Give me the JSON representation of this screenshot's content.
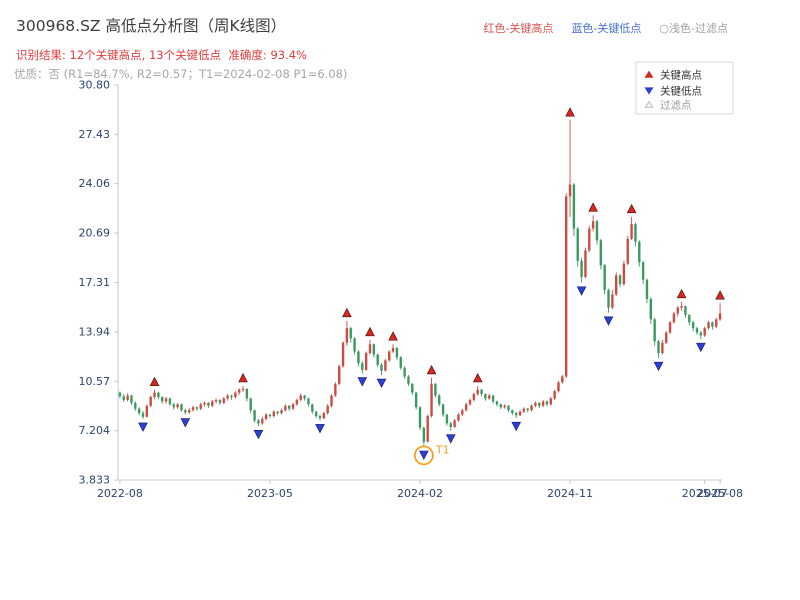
{
  "header": {
    "title": "300968.SZ 高低点分析图（周K线图）",
    "result_line": "识别结果: 12个关键高点, 13个关键低点  准确度: 93.4%",
    "result_line_color": "#e03c3c",
    "quality_line": "优质：否 (R1=84.7%, R2=0.57；T1=2024-02-08 P1=6.08)",
    "quality_line_color": "#a6a6a6",
    "page_legend": [
      {
        "label": "红色-关键高点",
        "color": "#d9534f"
      },
      {
        "label": "蓝色-关键低点",
        "color": "#4a6fd4"
      },
      {
        "label": "○浅色-过滤点",
        "color": "#9e9e9e"
      }
    ]
  },
  "chart_data": {
    "type": "candlestick",
    "symbol_title": "300968.SZ 高低点分析图（周K线图）",
    "ylim": [
      3.833,
      30.8
    ],
    "grid": false,
    "y_ticks": [
      {
        "v": 30.8,
        "label": "30.80"
      },
      {
        "v": 27.43,
        "label": "27.43"
      },
      {
        "v": 24.06,
        "label": "24.06"
      },
      {
        "v": 20.69,
        "label": "20.69"
      },
      {
        "v": 17.31,
        "label": "17.31"
      },
      {
        "v": 13.94,
        "label": "13.94"
      },
      {
        "v": 10.57,
        "label": "10.57"
      },
      {
        "v": 7.204,
        "label": "7.204"
      },
      {
        "v": 3.833,
        "label": "3.833"
      }
    ],
    "x_ticks": [
      {
        "week": 0,
        "label": "2022-08"
      },
      {
        "week": 39,
        "label": "2023-05"
      },
      {
        "week": 78,
        "label": "2024-02"
      },
      {
        "week": 117,
        "label": "2024-11"
      },
      {
        "week": 152,
        "label": "2025-07"
      },
      {
        "week": 156,
        "label": "2025-08"
      }
    ],
    "colors": {
      "up": "#cd4a42",
      "down": "#3a9960",
      "key_high": "#d7261d",
      "key_high_edge": "#3a0a0a",
      "key_low": "#2d3fd4",
      "key_low_edge": "#0c1560",
      "filter": "#f5a01e",
      "axis": "#c4c9d2",
      "tick_label": "#2d4373"
    },
    "legend_box": [
      {
        "marker": "up-triangle",
        "label": "关键高点",
        "text_color": "#333333"
      },
      {
        "marker": "down-triangle",
        "label": "关键低点",
        "text_color": "#333333"
      },
      {
        "marker": "open-triangle",
        "label": "过滤点",
        "text_color": "#9b9b9b"
      }
    ],
    "key_highs": [
      {
        "date": "2022-10-07",
        "price": 10.0
      },
      {
        "date": "2023-03-17",
        "price": 10.25
      },
      {
        "date": "2023-09-22",
        "price": 14.7
      },
      {
        "date": "2023-11-03",
        "price": 13.4
      },
      {
        "date": "2023-12-15",
        "price": 13.1
      },
      {
        "date": "2024-02-23",
        "price": 10.8
      },
      {
        "date": "2024-05-17",
        "price": 10.25
      },
      {
        "date": "2024-11-01",
        "price": 28.4
      },
      {
        "date": "2024-12-13",
        "price": 21.9
      },
      {
        "date": "2025-02-21",
        "price": 21.8
      },
      {
        "date": "2025-05-23",
        "price": 16.0
      },
      {
        "date": "2025-08-01",
        "price": 15.9
      }
    ],
    "key_lows": [
      {
        "date": "2022-09-16",
        "price": 8.0
      },
      {
        "date": "2022-12-02",
        "price": 8.3
      },
      {
        "date": "2023-04-14",
        "price": 7.5
      },
      {
        "date": "2023-08-04",
        "price": 7.9
      },
      {
        "date": "2023-10-20",
        "price": 11.1
      },
      {
        "date": "2023-11-24",
        "price": 11.0
      },
      {
        "date": "2024-02-09",
        "price": 6.08
      },
      {
        "date": "2024-03-29",
        "price": 7.2
      },
      {
        "date": "2024-07-26",
        "price": 8.05
      },
      {
        "date": "2024-11-22",
        "price": 17.3
      },
      {
        "date": "2025-01-10",
        "price": 15.25
      },
      {
        "date": "2025-04-11",
        "price": 12.15
      },
      {
        "date": "2025-06-27",
        "price": 13.45
      }
    ],
    "t1_annotation": {
      "date": "2024-02-09",
      "label": "T1",
      "price": 6.08
    },
    "candles": [
      [
        "2022-08-05",
        9.8,
        9.88,
        9.4,
        9.55
      ],
      [
        "2022-08-12",
        9.55,
        9.7,
        9.15,
        9.3
      ],
      [
        "2022-08-19",
        9.3,
        9.75,
        9.2,
        9.6
      ],
      [
        "2022-08-26",
        9.6,
        9.65,
        8.95,
        9.1
      ],
      [
        "2022-09-02",
        9.1,
        9.2,
        8.55,
        8.7
      ],
      [
        "2022-09-09",
        8.7,
        8.8,
        8.25,
        8.4
      ],
      [
        "2022-09-16",
        8.4,
        8.55,
        8.0,
        8.15
      ],
      [
        "2022-09-23",
        8.15,
        9.0,
        8.1,
        8.9
      ],
      [
        "2022-09-30",
        8.9,
        9.6,
        8.8,
        9.5
      ],
      [
        "2022-10-07",
        9.5,
        10.0,
        9.35,
        9.8
      ],
      [
        "2022-10-14",
        9.8,
        9.85,
        9.35,
        9.5
      ],
      [
        "2022-10-21",
        9.5,
        9.55,
        9.05,
        9.2
      ],
      [
        "2022-10-28",
        9.2,
        9.5,
        9.05,
        9.4
      ],
      [
        "2022-11-04",
        9.4,
        9.45,
        8.9,
        9.0
      ],
      [
        "2022-11-11",
        9.0,
        9.1,
        8.65,
        8.8
      ],
      [
        "2022-11-18",
        8.8,
        9.1,
        8.7,
        9.0
      ],
      [
        "2022-11-25",
        9.0,
        9.05,
        8.5,
        8.6
      ],
      [
        "2022-12-02",
        8.6,
        8.7,
        8.3,
        8.45
      ],
      [
        "2022-12-09",
        8.45,
        8.75,
        8.35,
        8.6
      ],
      [
        "2022-12-16",
        8.6,
        8.9,
        8.5,
        8.8
      ],
      [
        "2022-12-23",
        8.8,
        8.85,
        8.55,
        8.7
      ],
      [
        "2022-12-30",
        8.7,
        9.1,
        8.6,
        9.0
      ],
      [
        "2023-01-06",
        9.0,
        9.2,
        8.85,
        9.1
      ],
      [
        "2023-01-13",
        9.1,
        9.15,
        8.75,
        8.9
      ],
      [
        "2023-01-20",
        8.9,
        9.3,
        8.8,
        9.2
      ],
      [
        "2023-01-27",
        9.2,
        9.4,
        9.05,
        9.3
      ],
      [
        "2023-02-03",
        9.3,
        9.35,
        8.95,
        9.1
      ],
      [
        "2023-02-10",
        9.1,
        9.5,
        9.0,
        9.4
      ],
      [
        "2023-02-17",
        9.4,
        9.7,
        9.25,
        9.6
      ],
      [
        "2023-02-24",
        9.6,
        9.65,
        9.3,
        9.5
      ],
      [
        "2023-03-03",
        9.5,
        9.9,
        9.4,
        9.8
      ],
      [
        "2023-03-10",
        9.8,
        10.1,
        9.65,
        10.0
      ],
      [
        "2023-03-17",
        10.0,
        10.25,
        9.85,
        10.05
      ],
      [
        "2023-03-24",
        10.05,
        10.1,
        9.2,
        9.4
      ],
      [
        "2023-03-31",
        9.4,
        9.45,
        8.4,
        8.6
      ],
      [
        "2023-04-07",
        8.6,
        8.65,
        7.75,
        7.9
      ],
      [
        "2023-04-14",
        7.9,
        8.0,
        7.5,
        7.7
      ],
      [
        "2023-04-21",
        7.7,
        8.15,
        7.6,
        8.0
      ],
      [
        "2023-04-28",
        8.0,
        8.4,
        7.9,
        8.3
      ],
      [
        "2023-05-05",
        8.3,
        8.35,
        8.05,
        8.2
      ],
      [
        "2023-05-12",
        8.2,
        8.6,
        8.1,
        8.5
      ],
      [
        "2023-05-19",
        8.5,
        8.55,
        8.25,
        8.4
      ],
      [
        "2023-05-26",
        8.4,
        8.7,
        8.3,
        8.6
      ],
      [
        "2023-06-02",
        8.6,
        9.0,
        8.5,
        8.9
      ],
      [
        "2023-06-09",
        8.9,
        8.95,
        8.55,
        8.7
      ],
      [
        "2023-06-16",
        8.7,
        9.1,
        8.6,
        9.0
      ],
      [
        "2023-06-23",
        9.0,
        9.4,
        8.9,
        9.3
      ],
      [
        "2023-06-30",
        9.3,
        9.75,
        9.2,
        9.6
      ],
      [
        "2023-07-07",
        9.6,
        9.65,
        9.25,
        9.4
      ],
      [
        "2023-07-14",
        9.4,
        9.45,
        8.85,
        9.0
      ],
      [
        "2023-07-21",
        9.0,
        9.05,
        8.35,
        8.5
      ],
      [
        "2023-07-28",
        8.5,
        8.55,
        8.05,
        8.2
      ],
      [
        "2023-08-04",
        8.2,
        8.3,
        7.9,
        8.05
      ],
      [
        "2023-08-11",
        8.05,
        8.5,
        8.0,
        8.4
      ],
      [
        "2023-08-18",
        8.4,
        9.0,
        8.3,
        8.9
      ],
      [
        "2023-08-25",
        8.9,
        9.7,
        8.8,
        9.6
      ],
      [
        "2023-09-01",
        9.6,
        10.5,
        9.5,
        10.4
      ],
      [
        "2023-09-08",
        10.4,
        11.7,
        10.3,
        11.6
      ],
      [
        "2023-09-15",
        11.6,
        13.3,
        11.5,
        13.2
      ],
      [
        "2023-09-22",
        13.2,
        14.7,
        13.0,
        14.2
      ],
      [
        "2023-09-29",
        14.2,
        14.3,
        13.2,
        13.5
      ],
      [
        "2023-10-06",
        13.5,
        13.6,
        12.4,
        12.6
      ],
      [
        "2023-10-13",
        12.6,
        12.7,
        11.6,
        11.8
      ],
      [
        "2023-10-20",
        11.8,
        11.95,
        11.1,
        11.35
      ],
      [
        "2023-10-27",
        11.35,
        12.6,
        11.3,
        12.5
      ],
      [
        "2023-11-03",
        12.5,
        13.4,
        12.4,
        13.1
      ],
      [
        "2023-11-10",
        13.1,
        13.15,
        12.2,
        12.4
      ],
      [
        "2023-11-17",
        12.4,
        12.45,
        11.55,
        11.7
      ],
      [
        "2023-11-24",
        11.7,
        11.8,
        11.0,
        11.3
      ],
      [
        "2023-12-01",
        11.3,
        12.1,
        11.25,
        12.0
      ],
      [
        "2023-12-08",
        12.0,
        12.7,
        11.9,
        12.6
      ],
      [
        "2023-12-15",
        12.6,
        13.1,
        12.5,
        12.85
      ],
      [
        "2023-12-22",
        12.85,
        12.9,
        12.0,
        12.2
      ],
      [
        "2023-12-29",
        12.2,
        12.3,
        11.35,
        11.5
      ],
      [
        "2024-01-05",
        11.5,
        11.6,
        10.75,
        10.9
      ],
      [
        "2024-01-12",
        10.9,
        11.0,
        10.25,
        10.4
      ],
      [
        "2024-01-19",
        10.4,
        10.45,
        9.65,
        9.8
      ],
      [
        "2024-01-26",
        9.8,
        9.85,
        8.65,
        8.8
      ],
      [
        "2024-02-02",
        8.8,
        8.85,
        7.25,
        7.4
      ],
      [
        "2024-02-09",
        7.4,
        7.45,
        6.08,
        6.45
      ],
      [
        "2024-02-16",
        6.45,
        8.3,
        6.4,
        8.2
      ],
      [
        "2024-02-23",
        8.2,
        10.8,
        8.1,
        10.4
      ],
      [
        "2024-03-01",
        10.4,
        10.45,
        9.45,
        9.6
      ],
      [
        "2024-03-08",
        9.6,
        9.7,
        8.85,
        9.0
      ],
      [
        "2024-03-15",
        9.0,
        9.05,
        8.15,
        8.3
      ],
      [
        "2024-03-22",
        8.3,
        8.35,
        7.55,
        7.7
      ],
      [
        "2024-03-29",
        7.7,
        7.8,
        7.2,
        7.45
      ],
      [
        "2024-04-05",
        7.45,
        8.0,
        7.4,
        7.9
      ],
      [
        "2024-04-12",
        7.9,
        8.4,
        7.8,
        8.3
      ],
      [
        "2024-04-19",
        8.3,
        8.7,
        8.2,
        8.6
      ],
      [
        "2024-04-26",
        8.6,
        9.1,
        8.5,
        9.0
      ],
      [
        "2024-05-03",
        9.0,
        9.4,
        8.9,
        9.3
      ],
      [
        "2024-05-10",
        9.3,
        9.8,
        9.2,
        9.7
      ],
      [
        "2024-05-17",
        9.7,
        10.25,
        9.6,
        10.0
      ],
      [
        "2024-05-24",
        10.0,
        10.05,
        9.55,
        9.7
      ],
      [
        "2024-05-31",
        9.7,
        9.75,
        9.25,
        9.4
      ],
      [
        "2024-06-07",
        9.4,
        9.7,
        9.3,
        9.6
      ],
      [
        "2024-06-14",
        9.6,
        9.65,
        9.05,
        9.2
      ],
      [
        "2024-06-21",
        9.2,
        9.25,
        8.85,
        9.0
      ],
      [
        "2024-06-28",
        9.0,
        9.05,
        8.65,
        8.8
      ],
      [
        "2024-07-05",
        8.8,
        9.0,
        8.7,
        8.9
      ],
      [
        "2024-07-12",
        8.9,
        8.95,
        8.45,
        8.6
      ],
      [
        "2024-07-19",
        8.6,
        8.65,
        8.25,
        8.4
      ],
      [
        "2024-07-26",
        8.4,
        8.5,
        8.05,
        8.25
      ],
      [
        "2024-08-02",
        8.25,
        8.6,
        8.2,
        8.5
      ],
      [
        "2024-08-09",
        8.5,
        8.8,
        8.4,
        8.7
      ],
      [
        "2024-08-16",
        8.7,
        8.75,
        8.45,
        8.6
      ],
      [
        "2024-08-23",
        8.6,
        9.0,
        8.5,
        8.9
      ],
      [
        "2024-08-30",
        8.9,
        9.2,
        8.8,
        9.1
      ],
      [
        "2024-09-06",
        9.1,
        9.15,
        8.75,
        8.9
      ],
      [
        "2024-09-13",
        8.9,
        9.3,
        8.8,
        9.2
      ],
      [
        "2024-09-20",
        9.2,
        9.25,
        8.85,
        9.0
      ],
      [
        "2024-09-27",
        9.0,
        9.5,
        8.9,
        9.4
      ],
      [
        "2024-10-04",
        9.4,
        10.0,
        9.3,
        9.9
      ],
      [
        "2024-10-11",
        9.9,
        10.6,
        9.8,
        10.5
      ],
      [
        "2024-10-18",
        10.5,
        11.0,
        10.4,
        10.9
      ],
      [
        "2024-10-25",
        10.9,
        23.4,
        10.8,
        23.2
      ],
      [
        "2024-11-01",
        23.2,
        28.4,
        21.8,
        24.0
      ],
      [
        "2024-11-08",
        24.0,
        24.1,
        20.5,
        21.0
      ],
      [
        "2024-11-15",
        21.0,
        21.1,
        18.4,
        18.8
      ],
      [
        "2024-11-22",
        18.8,
        19.0,
        17.3,
        17.7
      ],
      [
        "2024-11-29",
        17.7,
        19.7,
        17.6,
        19.5
      ],
      [
        "2024-12-06",
        19.5,
        21.2,
        19.4,
        21.0
      ],
      [
        "2024-12-13",
        21.0,
        21.9,
        20.8,
        21.5
      ],
      [
        "2024-12-20",
        21.5,
        21.6,
        19.9,
        20.2
      ],
      [
        "2024-12-27",
        20.2,
        20.3,
        18.2,
        18.5
      ],
      [
        "2025-01-03",
        18.5,
        18.6,
        16.5,
        16.8
      ],
      [
        "2025-01-10",
        16.8,
        16.9,
        15.25,
        15.6
      ],
      [
        "2025-01-17",
        15.6,
        16.8,
        15.5,
        16.5
      ],
      [
        "2025-01-24",
        16.5,
        18.0,
        16.4,
        17.8
      ],
      [
        "2025-01-31",
        17.8,
        17.9,
        17.0,
        17.2
      ],
      [
        "2025-02-07",
        17.2,
        18.8,
        17.1,
        18.6
      ],
      [
        "2025-02-14",
        18.6,
        20.5,
        18.5,
        20.3
      ],
      [
        "2025-02-21",
        20.3,
        21.8,
        20.2,
        21.3
      ],
      [
        "2025-02-28",
        21.3,
        21.4,
        19.8,
        20.1
      ],
      [
        "2025-03-07",
        20.1,
        20.2,
        18.4,
        18.7
      ],
      [
        "2025-03-14",
        18.7,
        18.8,
        17.2,
        17.5
      ],
      [
        "2025-03-21",
        17.5,
        17.6,
        15.9,
        16.2
      ],
      [
        "2025-03-28",
        16.2,
        16.3,
        14.5,
        14.8
      ],
      [
        "2025-04-04",
        14.8,
        14.9,
        13.0,
        13.3
      ],
      [
        "2025-04-11",
        13.3,
        13.4,
        12.15,
        12.5
      ],
      [
        "2025-04-18",
        12.5,
        13.4,
        12.4,
        13.2
      ],
      [
        "2025-04-25",
        13.2,
        14.0,
        13.1,
        13.9
      ],
      [
        "2025-05-02",
        13.9,
        14.7,
        13.8,
        14.6
      ],
      [
        "2025-05-09",
        14.6,
        15.3,
        14.5,
        15.2
      ],
      [
        "2025-05-16",
        15.2,
        15.7,
        15.0,
        15.6
      ],
      [
        "2025-05-23",
        15.6,
        16.0,
        15.4,
        15.7
      ],
      [
        "2025-05-30",
        15.7,
        15.75,
        14.9,
        15.1
      ],
      [
        "2025-06-06",
        15.1,
        15.15,
        14.4,
        14.6
      ],
      [
        "2025-06-13",
        14.6,
        14.7,
        14.0,
        14.2
      ],
      [
        "2025-06-20",
        14.2,
        14.3,
        13.75,
        13.9
      ],
      [
        "2025-06-27",
        13.9,
        14.0,
        13.45,
        13.7
      ],
      [
        "2025-07-04",
        13.7,
        14.3,
        13.6,
        14.2
      ],
      [
        "2025-07-11",
        14.2,
        14.7,
        14.1,
        14.6
      ],
      [
        "2025-07-18",
        14.6,
        14.65,
        14.1,
        14.3
      ],
      [
        "2025-07-25",
        14.3,
        14.9,
        14.2,
        14.8
      ],
      [
        "2025-08-01",
        14.8,
        15.9,
        14.7,
        15.2
      ]
    ]
  }
}
